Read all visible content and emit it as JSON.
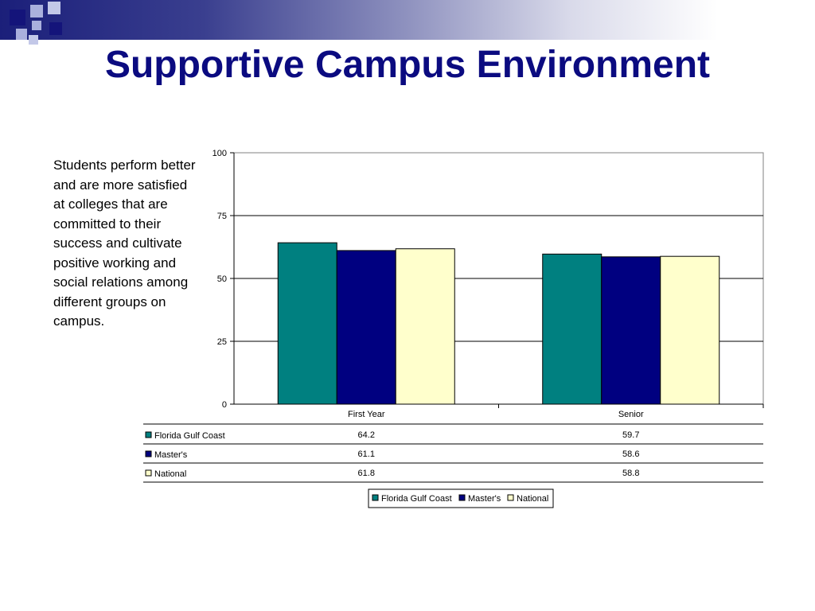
{
  "slide": {
    "title": "Supportive Campus Environment",
    "description": "Students perform better and are more satisfied at colleges that are committed to their success and cultivate positive working and social relations among different groups on campus."
  },
  "colors": {
    "title": "#0b0b80",
    "decor_dark": "#14147a",
    "decor_light": "#aab0dd"
  },
  "chart_data": {
    "type": "bar",
    "categories": [
      "First Year",
      "Senior"
    ],
    "series": [
      {
        "name": "Florida Gulf Coast",
        "values": [
          64.2,
          59.7
        ],
        "color": "#008080"
      },
      {
        "name": "Master's",
        "values": [
          61.1,
          58.6
        ],
        "color": "#000080"
      },
      {
        "name": "National",
        "values": [
          61.8,
          58.8
        ],
        "color": "#ffffcc"
      }
    ],
    "table": [
      [
        "64.2",
        "59.7"
      ],
      [
        "61.1",
        "58.6"
      ],
      [
        "61.8",
        "58.8"
      ]
    ],
    "ylim": [
      0,
      100
    ],
    "yticks": [
      0,
      25,
      50,
      75,
      100
    ],
    "grid": true,
    "legend": "bottom-center",
    "data_table": true
  }
}
